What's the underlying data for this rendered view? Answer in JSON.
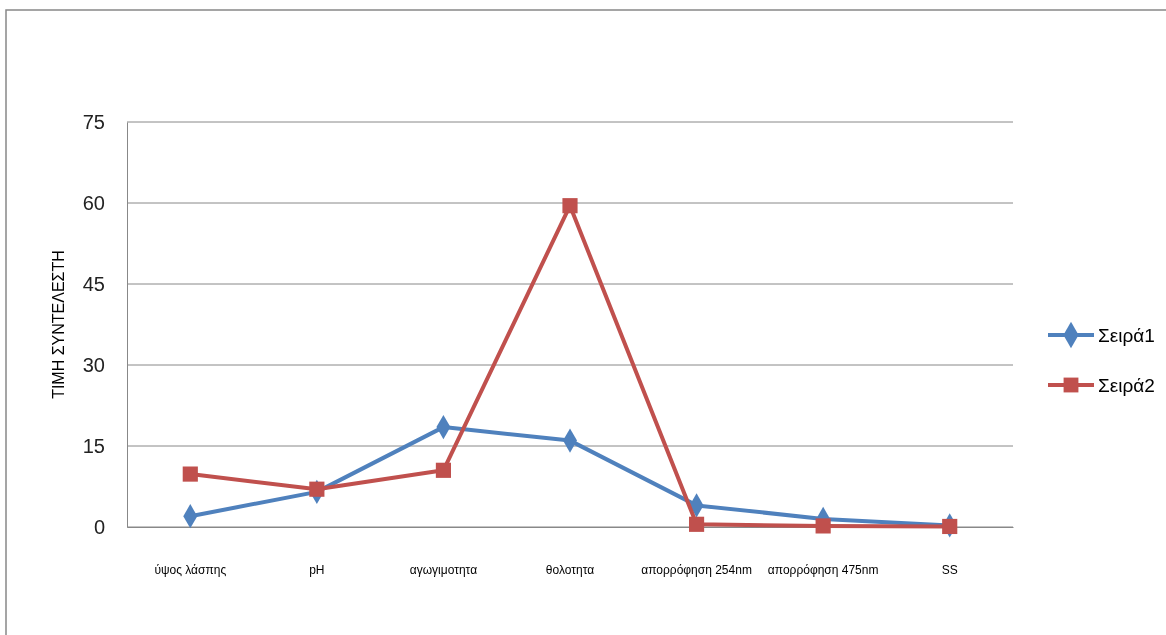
{
  "chart_data": {
    "type": "line",
    "ylabel": "ΤΙΜΗ ΣΥΝΤΕΛΕΣΤΗ",
    "categories": [
      "ύψος λάσπης",
      "pH",
      "αγωγιμοτητα",
      "θολοτητα",
      "απορρόφηση 254nm",
      "απορρόφηση 475nm",
      "SS"
    ],
    "series": [
      {
        "name": "Σειρά1",
        "color": "#4f81bd",
        "marker": "diamond",
        "values": [
          2,
          6.5,
          18.5,
          16,
          4,
          1.5,
          0.3
        ]
      },
      {
        "name": "Σειρά2",
        "color": "#c0504d",
        "marker": "square",
        "values": [
          9.8,
          7,
          10.5,
          59.5,
          0.5,
          0.2,
          0.1
        ]
      }
    ],
    "ylim": [
      0,
      75
    ],
    "yticks": [
      0,
      15,
      30,
      45,
      60,
      75
    ],
    "grid": "y",
    "legend": "right"
  }
}
